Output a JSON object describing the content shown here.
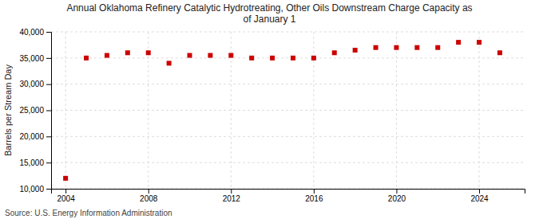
{
  "chart_data": {
    "type": "scatter",
    "title": "Annual Oklahoma Refinery Catalytic Hydrotreating, Other Oils Downstream Charge Capacity as\nof January  1",
    "ylabel": "Barrels per Stream Day",
    "source": "Source: U.S. Energy Information Administration",
    "x": [
      2004,
      2005,
      2006,
      2007,
      2008,
      2009,
      2010,
      2011,
      2012,
      2013,
      2014,
      2015,
      2016,
      2017,
      2018,
      2019,
      2020,
      2021,
      2022,
      2023,
      2024,
      2025
    ],
    "values": [
      12000,
      35000,
      35500,
      36000,
      36000,
      34000,
      35500,
      35500,
      35500,
      35000,
      35000,
      35000,
      35000,
      36000,
      36500,
      37000,
      37000,
      37000,
      37000,
      38000,
      38000,
      36000
    ],
    "color": "#cc0000",
    "marker": "square",
    "xlim": [
      2003.3,
      2026.2
    ],
    "xticks": [
      2004,
      2008,
      2012,
      2016,
      2020,
      2024
    ],
    "ylim": [
      10000,
      40000
    ],
    "yticks": [
      {
        "value": 10000,
        "label": "10,000"
      },
      {
        "value": 15000,
        "label": "15,000"
      },
      {
        "value": 20000,
        "label": "20,000"
      },
      {
        "value": 25000,
        "label": "25,000"
      },
      {
        "value": 30000,
        "label": "30,000"
      },
      {
        "value": 35000,
        "label": "35,000"
      },
      {
        "value": 40000,
        "label": "40,000"
      }
    ],
    "grid": true
  }
}
